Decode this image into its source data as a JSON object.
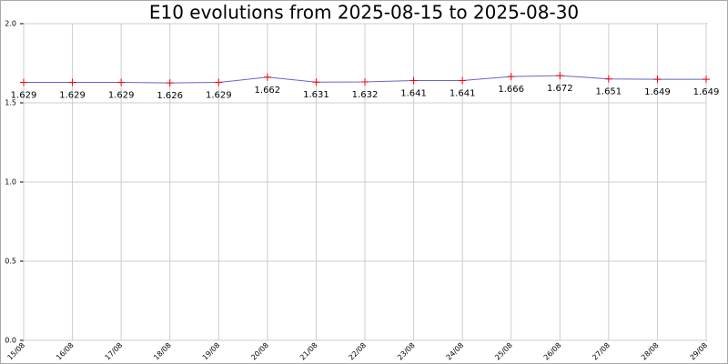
{
  "chart_data": {
    "type": "line",
    "title": "E10 evolutions from 2025-08-15 to 2025-08-30",
    "categories": [
      "15/08",
      "16/08",
      "17/08",
      "18/08",
      "19/08",
      "20/08",
      "21/08",
      "22/08",
      "23/08",
      "24/08",
      "25/08",
      "26/08",
      "27/08",
      "28/08",
      "29/08"
    ],
    "series": [
      {
        "color": "#6666cc",
        "marker_color": "#ff0000",
        "values": [
          1.629,
          1.629,
          1.629,
          1.626,
          1.629,
          1.662,
          1.631,
          1.632,
          1.641,
          1.641,
          1.666,
          1.672,
          1.651,
          1.649,
          1.649
        ]
      }
    ],
    "ylim": [
      0,
      2
    ],
    "yticks": [
      {
        "value": 0,
        "label": "0.0"
      },
      {
        "value": 0.5,
        "label": "0.5"
      },
      {
        "value": 1,
        "label": "1.0"
      },
      {
        "value": 1.5,
        "label": "1.5"
      },
      {
        "value": 2,
        "label": "2.0"
      }
    ],
    "grid": true
  }
}
